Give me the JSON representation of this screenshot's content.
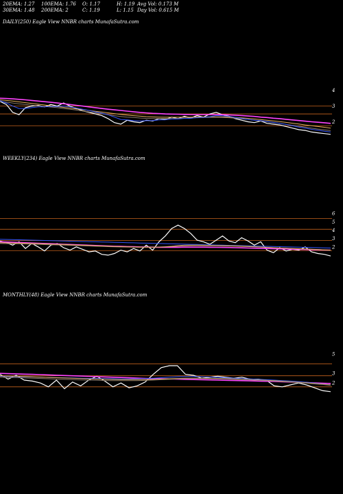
{
  "stats": {
    "ema20": "20EMA: 1.27",
    "ema100": "100EMA: 1.76",
    "open": "O: 1.17",
    "high": "H: 1.19",
    "avg_vol": "Avg Vol: 0.173 M",
    "ema30": "30EMA: 1.48",
    "ema200": "200EMA: 2",
    "close": "C: 1.19",
    "low": "L: 1.15",
    "day_vol": "Day Vol: 0.615 M"
  },
  "chart_data": [
    {
      "type": "line",
      "title": "DAILY(250) Eagle   View  NNBR charts MunafaSutra.com",
      "ylim": [
        0.8,
        4.6
      ],
      "yticks": [
        "4",
        "3",
        "2"
      ],
      "ytick_values": [
        4,
        3,
        2
      ],
      "hlines": [
        3,
        2.5,
        1.75
      ],
      "series": [
        {
          "color": "#ffffff",
          "values": [
            3.3,
            3.1,
            2.6,
            2.45,
            2.9,
            3.0,
            3.05,
            2.95,
            3.1,
            3.0,
            3.2,
            3.0,
            2.85,
            2.7,
            2.6,
            2.5,
            2.4,
            2.2,
            1.95,
            1.85,
            2.1,
            2.0,
            1.95,
            2.1,
            2.05,
            2.2,
            2.15,
            2.3,
            2.2,
            2.35,
            2.25,
            2.4,
            2.3,
            2.5,
            2.6,
            2.45,
            2.35,
            2.2,
            2.1,
            2.0,
            1.95,
            2.05,
            1.9,
            1.85,
            1.8,
            1.7,
            1.6,
            1.5,
            1.45,
            1.35,
            1.3,
            1.25,
            1.2
          ]
        },
        {
          "color": "#ff44ff",
          "values": [
            3.5,
            3.48,
            3.46,
            3.43,
            3.4,
            3.36,
            3.32,
            3.28,
            3.24,
            3.2,
            3.15,
            3.1,
            3.05,
            3.0,
            2.95,
            2.9,
            2.85,
            2.8,
            2.76,
            2.72,
            2.68,
            2.64,
            2.6,
            2.57,
            2.54,
            2.52,
            2.5,
            2.49,
            2.48,
            2.47,
            2.46,
            2.46,
            2.46,
            2.46,
            2.46,
            2.45,
            2.44,
            2.42,
            2.4,
            2.37,
            2.34,
            2.3,
            2.27,
            2.23,
            2.2,
            2.16,
            2.12,
            2.08,
            2.04,
            2.0,
            1.97,
            1.94,
            1.9
          ]
        },
        {
          "color": "#e8b060",
          "values": [
            3.4,
            3.36,
            3.32,
            3.27,
            3.22,
            3.17,
            3.12,
            3.07,
            3.02,
            2.97,
            2.92,
            2.87,
            2.82,
            2.77,
            2.72,
            2.67,
            2.62,
            2.57,
            2.52,
            2.47,
            2.43,
            2.39,
            2.36,
            2.33,
            2.31,
            2.3,
            2.29,
            2.29,
            2.29,
            2.3,
            2.3,
            2.31,
            2.31,
            2.32,
            2.32,
            2.31,
            2.3,
            2.28,
            2.25,
            2.22,
            2.18,
            2.14,
            2.1,
            2.06,
            2.01,
            1.96,
            1.91,
            1.86,
            1.8,
            1.75,
            1.7,
            1.65,
            1.6
          ]
        },
        {
          "color": "#8a7a6a",
          "values": [
            3.3,
            3.25,
            3.2,
            3.14,
            3.1,
            3.06,
            3.02,
            2.98,
            2.94,
            2.9,
            2.85,
            2.8,
            2.75,
            2.69,
            2.63,
            2.57,
            2.51,
            2.45,
            2.39,
            2.34,
            2.3,
            2.27,
            2.24,
            2.22,
            2.21,
            2.2,
            2.2,
            2.21,
            2.22,
            2.23,
            2.24,
            2.26,
            2.27,
            2.28,
            2.29,
            2.28,
            2.26,
            2.23,
            2.19,
            2.15,
            2.1,
            2.05,
            2.0,
            1.95,
            1.9,
            1.84,
            1.78,
            1.72,
            1.66,
            1.6,
            1.54,
            1.49,
            1.44
          ]
        },
        {
          "color": "#3355ff",
          "values": [
            3.35,
            3.2,
            3.0,
            2.85,
            2.85,
            2.9,
            2.95,
            2.95,
            2.98,
            2.97,
            3.0,
            2.95,
            2.88,
            2.8,
            2.72,
            2.63,
            2.55,
            2.45,
            2.3,
            2.15,
            2.12,
            2.08,
            2.05,
            2.07,
            2.08,
            2.12,
            2.13,
            2.18,
            2.18,
            2.22,
            2.22,
            2.27,
            2.27,
            2.33,
            2.4,
            2.38,
            2.35,
            2.28,
            2.22,
            2.15,
            2.1,
            2.08,
            2.02,
            1.96,
            1.9,
            1.83,
            1.75,
            1.66,
            1.6,
            1.52,
            1.46,
            1.4,
            1.35
          ]
        }
      ]
    },
    {
      "type": "line",
      "title": "WEEKLY(234) Eagle   View  NNBR charts MunafaSutra.com",
      "ylim": [
        0.5,
        6.5
      ],
      "yticks": [
        "6",
        "5",
        "4",
        "3",
        "2"
      ],
      "ytick_values": [
        6,
        5,
        4,
        3,
        2
      ],
      "hlines": [
        5.4,
        4.1,
        2.75,
        1.55
      ],
      "series": [
        {
          "color": "#ffffff",
          "values": [
            2.7,
            2.5,
            2.2,
            2.6,
            1.8,
            2.4,
            2.0,
            1.5,
            2.2,
            2.4,
            1.9,
            1.6,
            2.0,
            1.7,
            1.4,
            1.5,
            1.1,
            1.0,
            1.2,
            1.6,
            1.4,
            1.8,
            1.5,
            2.2,
            1.6,
            2.6,
            3.3,
            4.2,
            4.6,
            4.2,
            3.6,
            2.8,
            2.6,
            2.3,
            2.8,
            3.3,
            2.7,
            2.5,
            3.1,
            2.7,
            2.2,
            2.6,
            1.6,
            1.3,
            1.9,
            1.5,
            1.7,
            1.6,
            2.0,
            1.4,
            1.2,
            1.1,
            0.9
          ]
        },
        {
          "color": "#ff44ff",
          "values": [
            2.6,
            2.58,
            2.55,
            2.52,
            2.49,
            2.46,
            2.43,
            2.4,
            2.37,
            2.34,
            2.31,
            2.28,
            2.25,
            2.22,
            2.19,
            2.16,
            2.13,
            2.1,
            2.07,
            2.05,
            2.03,
            2.01,
            1.99,
            1.97,
            1.96,
            1.95,
            1.95,
            1.95,
            1.95,
            1.96,
            1.96,
            1.96,
            1.96,
            1.95,
            1.94,
            1.93,
            1.92,
            1.9,
            1.88,
            1.86,
            1.84,
            1.82,
            1.8,
            1.78,
            1.76,
            1.74,
            1.72,
            1.7,
            1.68,
            1.66,
            1.64,
            1.62,
            1.6
          ]
        },
        {
          "color": "#3355ff",
          "values": [
            2.9,
            2.88,
            2.86,
            2.84,
            2.82,
            2.8,
            2.78,
            2.76,
            2.74,
            2.72,
            2.7,
            2.68,
            2.66,
            2.64,
            2.62,
            2.6,
            2.58,
            2.56,
            2.54,
            2.52,
            2.5,
            2.48,
            2.46,
            2.44,
            2.42,
            2.4,
            2.38,
            2.36,
            2.34,
            2.32,
            2.3,
            2.28,
            2.26,
            2.24,
            2.22,
            2.2,
            2.18,
            2.16,
            2.14,
            2.12,
            2.1,
            2.08,
            2.06,
            2.04,
            2.02,
            2.0,
            1.98,
            1.96,
            1.94,
            1.92,
            1.9,
            1.88,
            1.86
          ]
        },
        {
          "color": "#8a7a6a",
          "values": [
            2.4,
            2.38,
            2.37,
            2.36,
            2.34,
            2.32,
            2.3,
            2.27,
            2.25,
            2.23,
            2.2,
            2.18,
            2.15,
            2.12,
            2.1,
            2.07,
            2.05,
            2.02,
            2.0,
            1.98,
            1.97,
            1.96,
            1.95,
            1.95,
            1.96,
            1.98,
            2.02,
            2.08,
            2.15,
            2.2,
            2.22,
            2.22,
            2.2,
            2.18,
            2.16,
            2.15,
            2.14,
            2.12,
            2.1,
            2.07,
            2.03,
            1.99,
            1.95,
            1.9,
            1.86,
            1.82,
            1.79,
            1.76,
            1.73,
            1.7,
            1.66,
            1.62,
            1.58
          ]
        },
        {
          "color": "#e8b060",
          "values": [
            2.5,
            2.48,
            2.46,
            2.44,
            2.42,
            2.4,
            2.38,
            2.35,
            2.32,
            2.3,
            2.28,
            2.25,
            2.22,
            2.19,
            2.16,
            2.13,
            2.1,
            2.07,
            2.04,
            2.02,
            2.0,
            1.98,
            1.97,
            1.96,
            1.96,
            1.97,
            1.99,
            2.03,
            2.08,
            2.12,
            2.14,
            2.15,
            2.14,
            2.13,
            2.12,
            2.11,
            2.1,
            2.08,
            2.06,
            2.03,
            2.0,
            1.97,
            1.93,
            1.9,
            1.86,
            1.83,
            1.8,
            1.77,
            1.74,
            1.71,
            1.68,
            1.64,
            1.6
          ]
        }
      ]
    },
    {
      "type": "line",
      "title": "MONTHLY(48) Eagle   View  NNBR charts MunafaSutra.com",
      "ylim": [
        0.8,
        5.8
      ],
      "yticks": [
        "5",
        "3",
        "2"
      ],
      "ytick_values": [
        5,
        3,
        2
      ],
      "hlines": [
        4.0,
        2.75,
        1.6
      ],
      "series": [
        {
          "color": "#ffffff",
          "values": [
            2.9,
            2.4,
            2.8,
            2.3,
            2.2,
            2.0,
            1.6,
            2.3,
            1.4,
            2.1,
            1.7,
            2.3,
            2.7,
            2.2,
            1.6,
            2.0,
            1.5,
            1.7,
            2.1,
            2.9,
            3.6,
            3.8,
            3.8,
            2.9,
            2.8,
            2.5,
            2.6,
            2.7,
            2.6,
            2.5,
            2.6,
            2.4,
            2.4,
            2.3,
            1.7,
            1.6,
            1.8,
            2.0,
            1.8,
            1.5,
            1.2,
            1.1
          ]
        },
        {
          "color": "#ff44ff",
          "values": [
            3.0,
            2.97,
            2.95,
            2.92,
            2.9,
            2.87,
            2.84,
            2.81,
            2.78,
            2.75,
            2.72,
            2.69,
            2.66,
            2.63,
            2.6,
            2.57,
            2.54,
            2.51,
            2.48,
            2.46,
            2.44,
            2.42,
            2.4,
            2.38,
            2.36,
            2.34,
            2.32,
            2.3,
            2.28,
            2.26,
            2.24,
            2.22,
            2.2,
            2.18,
            2.16,
            2.13,
            2.1,
            2.07,
            2.04,
            2.01,
            1.98,
            1.95
          ]
        },
        {
          "color": "#3355ff",
          "values": [
            2.7,
            2.68,
            2.66,
            2.64,
            2.62,
            2.6,
            2.58,
            2.56,
            2.54,
            2.52,
            2.5,
            2.48,
            2.46,
            2.45,
            2.44,
            2.43,
            2.43,
            2.44,
            2.46,
            2.5,
            2.55,
            2.6,
            2.65,
            2.68,
            2.68,
            2.66,
            2.62,
            2.58,
            2.54,
            2.5,
            2.46,
            2.42,
            2.38,
            2.34,
            2.3,
            2.25,
            2.2,
            2.14,
            2.08,
            2.0,
            1.9,
            1.8
          ]
        },
        {
          "color": "#e8b060",
          "values": [
            2.75,
            2.72,
            2.7,
            2.67,
            2.64,
            2.61,
            2.58,
            2.55,
            2.52,
            2.49,
            2.46,
            2.43,
            2.41,
            2.39,
            2.37,
            2.36,
            2.35,
            2.35,
            2.36,
            2.38,
            2.41,
            2.44,
            2.47,
            2.49,
            2.5,
            2.5,
            2.49,
            2.47,
            2.45,
            2.42,
            2.39,
            2.36,
            2.32,
            2.28,
            2.24,
            2.19,
            2.14,
            2.08,
            2.02,
            1.95,
            1.88,
            1.8
          ]
        },
        {
          "color": "#8a7a6a",
          "values": [
            2.6,
            2.58,
            2.56,
            2.53,
            2.5,
            2.47,
            2.44,
            2.41,
            2.38,
            2.35,
            2.32,
            2.3,
            2.28,
            2.26,
            2.25,
            2.24,
            2.24,
            2.25,
            2.27,
            2.3,
            2.34,
            2.38,
            2.42,
            2.45,
            2.46,
            2.46,
            2.45,
            2.43,
            2.41,
            2.38,
            2.35,
            2.32,
            2.28,
            2.24,
            2.2,
            2.15,
            2.1,
            2.04,
            1.98,
            1.91,
            1.84,
            1.76
          ]
        }
      ]
    }
  ]
}
